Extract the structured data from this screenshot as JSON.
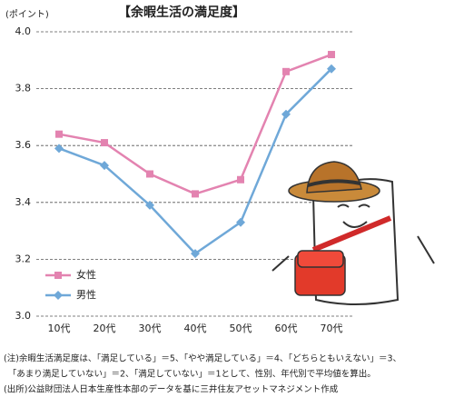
{
  "chart_data": {
    "type": "line",
    "title": "【余暇生活の満足度】",
    "unit_label": "(ポイント)",
    "categories": [
      "10代",
      "20代",
      "30代",
      "40代",
      "50代",
      "60代",
      "70代"
    ],
    "series": [
      {
        "name": "女性",
        "color": "#e383b0",
        "marker": "square",
        "values": [
          3.64,
          3.61,
          3.5,
          3.43,
          3.48,
          3.86,
          3.92
        ]
      },
      {
        "name": "男性",
        "color": "#6fa8d8",
        "marker": "diamond",
        "values": [
          3.59,
          3.53,
          3.39,
          3.22,
          3.33,
          3.71,
          3.87
        ]
      }
    ],
    "ylim": [
      3.0,
      4.0
    ],
    "yticks": [
      {
        "value": 3,
        "label": "3.0"
      },
      3.2,
      3.4,
      3.6,
      3.8,
      {
        "value": 4,
        "label": "4.0"
      }
    ],
    "grid": true,
    "legend": "lower left",
    "notes": [
      "(注)余暇生活満足度は、「満足している」＝5、「やや満足している」＝4、「どちらともいえない」＝3、",
      "　「あまり満足していない」＝2、「満足していない」＝1として、性別、年代別で平均値を算出。",
      "(出所)公益財団法人日本生産性本部のデータを基に三井住友アセットマネジメント作成"
    ]
  }
}
